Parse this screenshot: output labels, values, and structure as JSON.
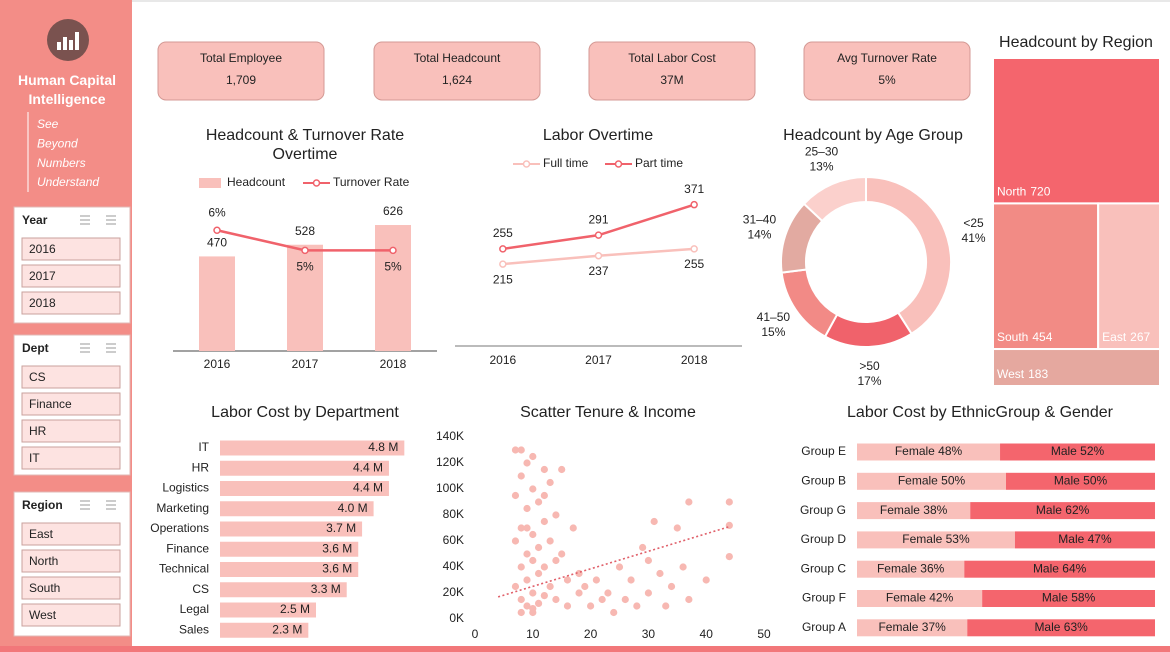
{
  "sidebar": {
    "title": "Human Capital Intelligence",
    "tagline": [
      "See",
      "Beyond",
      "Numbers",
      "Understand"
    ]
  },
  "slicers": [
    {
      "title": "Year",
      "items": [
        "2016",
        "2017",
        "2018"
      ]
    },
    {
      "title": "Dept",
      "items": [
        "CS",
        "Finance",
        "HR",
        "IT"
      ]
    },
    {
      "title": "Region",
      "items": [
        "East",
        "North",
        "South",
        "West"
      ]
    }
  ],
  "kpis": [
    {
      "label": "Total Employee",
      "value": "1,709"
    },
    {
      "label": "Total Headcount",
      "value": "1,624"
    },
    {
      "label": "Total Labor Cost",
      "value": "37M"
    },
    {
      "label": "Avg Turnover Rate",
      "value": "5%"
    }
  ],
  "chart_data": [
    {
      "type": "combo",
      "title": "Headcount & Turnover Rate Overtime",
      "categories": [
        "2016",
        "2017",
        "2018"
      ],
      "series": [
        {
          "name": "Headcount",
          "kind": "bar",
          "color": "#f9c0bb",
          "values": [
            470,
            528,
            626
          ]
        },
        {
          "name": "Turnover Rate",
          "kind": "line",
          "axis": "y2",
          "color": "#f0626b",
          "values": [
            6,
            5,
            5
          ],
          "value_labels": [
            "6%",
            "5%",
            "5%"
          ]
        }
      ],
      "ylim": [
        0,
        800
      ],
      "y2lim": [
        0,
        8
      ],
      "legend": "top"
    },
    {
      "type": "line",
      "title": "Labor Overtime",
      "categories": [
        "2016",
        "2017",
        "2018"
      ],
      "series": [
        {
          "name": "Full time",
          "color": "#f9c0bb",
          "values": [
            215,
            237,
            255
          ]
        },
        {
          "name": "Part time",
          "color": "#f0626b",
          "values": [
            255,
            291,
            371
          ]
        }
      ],
      "ylim": [
        0,
        420
      ],
      "legend": "top"
    },
    {
      "type": "donut",
      "title": "Headcount by Age Group",
      "categories": [
        "<25",
        ">50",
        "41–50",
        "31–40",
        "25–30"
      ],
      "values": [
        41,
        17,
        15,
        14,
        13
      ],
      "value_labels": [
        "41%",
        "17%",
        "15%",
        "14%",
        "13%"
      ],
      "colors": [
        "#f9c0bb",
        "#f0626b",
        "#f28a86",
        "#e2aaa1",
        "#fbd0cc"
      ]
    },
    {
      "type": "treemap",
      "title": "Headcount by Region",
      "categories": [
        "North",
        "South",
        "East",
        "West"
      ],
      "values": [
        720,
        454,
        267,
        183
      ],
      "colors": [
        "#f4656d",
        "#f28b85",
        "#f9c0bb",
        "#e5a89f"
      ]
    },
    {
      "type": "bar",
      "orientation": "horizontal",
      "title": "Labor Cost by Department",
      "categories": [
        "IT",
        "HR",
        "Logistics",
        "Marketing",
        "Operations",
        "Finance",
        "Technical",
        "CS",
        "Legal",
        "Sales"
      ],
      "values": [
        4.8,
        4.4,
        4.4,
        4.0,
        3.7,
        3.6,
        3.6,
        3.3,
        2.5,
        2.3
      ],
      "value_labels": [
        "4.8 M",
        "4.4 M",
        "4.4 M",
        "4.0 M",
        "3.7 M",
        "3.6 M",
        "3.6 M",
        "3.3 M",
        "2.5 M",
        "2.3 M"
      ],
      "color": "#f9c0bb",
      "xlim": [
        0,
        5
      ]
    },
    {
      "type": "scatter",
      "title": "Scatter Tenure & Income",
      "color": "#f7b8b2",
      "x": [
        7,
        7,
        7,
        7,
        8,
        8,
        8,
        8,
        8,
        9,
        9,
        9,
        9,
        9,
        10,
        10,
        10,
        10,
        10,
        10,
        11,
        11,
        11,
        11,
        12,
        12,
        12,
        12,
        13,
        13,
        13,
        14,
        14,
        14,
        15,
        15,
        16,
        16,
        17,
        18,
        18,
        19,
        20,
        21,
        22,
        23,
        24,
        25,
        26,
        27,
        28,
        29,
        30,
        30,
        31,
        32,
        33,
        34,
        35,
        36,
        37,
        37,
        40,
        44,
        44,
        44,
        8,
        10,
        12,
        9
      ],
      "values": [
        130000,
        95000,
        60000,
        25000,
        110000,
        70000,
        40000,
        15000,
        5000,
        120000,
        85000,
        50000,
        30000,
        10000,
        125000,
        100000,
        65000,
        45000,
        20000,
        8000,
        90000,
        55000,
        35000,
        12000,
        115000,
        75000,
        40000,
        18000,
        105000,
        60000,
        25000,
        80000,
        45000,
        15000,
        115000,
        50000,
        30000,
        10000,
        70000,
        35000,
        20000,
        25000,
        10000,
        30000,
        15000,
        20000,
        5000,
        40000,
        15000,
        30000,
        10000,
        55000,
        45000,
        20000,
        75000,
        35000,
        10000,
        25000,
        70000,
        40000,
        90000,
        15000,
        30000,
        90000,
        72000,
        48000,
        130000,
        5000,
        95000,
        70000
      ],
      "trendline": {
        "color": "#e0606a",
        "x": [
          4,
          44
        ],
        "values": [
          17000,
          71000
        ]
      },
      "xlim": [
        0,
        50
      ],
      "xticks": [
        0,
        10,
        20,
        30,
        40,
        50
      ],
      "ylim": [
        0,
        140000
      ],
      "yticks": [
        {
          "value": 0,
          "label": "0K"
        },
        {
          "value": 20000,
          "label": "20K"
        },
        {
          "value": 40000,
          "label": "40K"
        },
        {
          "value": 60000,
          "label": "60K"
        },
        {
          "value": 80000,
          "label": "80K"
        },
        {
          "value": 100000,
          "label": "100K"
        },
        {
          "value": 120000,
          "label": "120K"
        },
        {
          "value": 140000,
          "label": "140K"
        }
      ]
    },
    {
      "type": "stacked_bar",
      "orientation": "horizontal",
      "title": "Labor Cost by EthnicGroup & Gender",
      "categories": [
        "Group E",
        "Group B",
        "Group G",
        "Group D",
        "Group C",
        "Group F",
        "Group A"
      ],
      "series": [
        {
          "name": "Female",
          "color": "#f9c0bb",
          "values": [
            48,
            50,
            38,
            53,
            36,
            42,
            37
          ],
          "value_labels": [
            "Female 48%",
            "Female 50%",
            "Female 38%",
            "Female 53%",
            "Female 36%",
            "Female 42%",
            "Female 37%"
          ]
        },
        {
          "name": "Male",
          "color": "#f4656d",
          "values": [
            52,
            50,
            62,
            47,
            64,
            58,
            63
          ],
          "value_labels": [
            "Male 52%",
            "Male 50%",
            "Male 62%",
            "Male 47%",
            "Male 64%",
            "Male 58%",
            "Male 63%"
          ]
        }
      ],
      "xlim": [
        0,
        100
      ]
    }
  ]
}
